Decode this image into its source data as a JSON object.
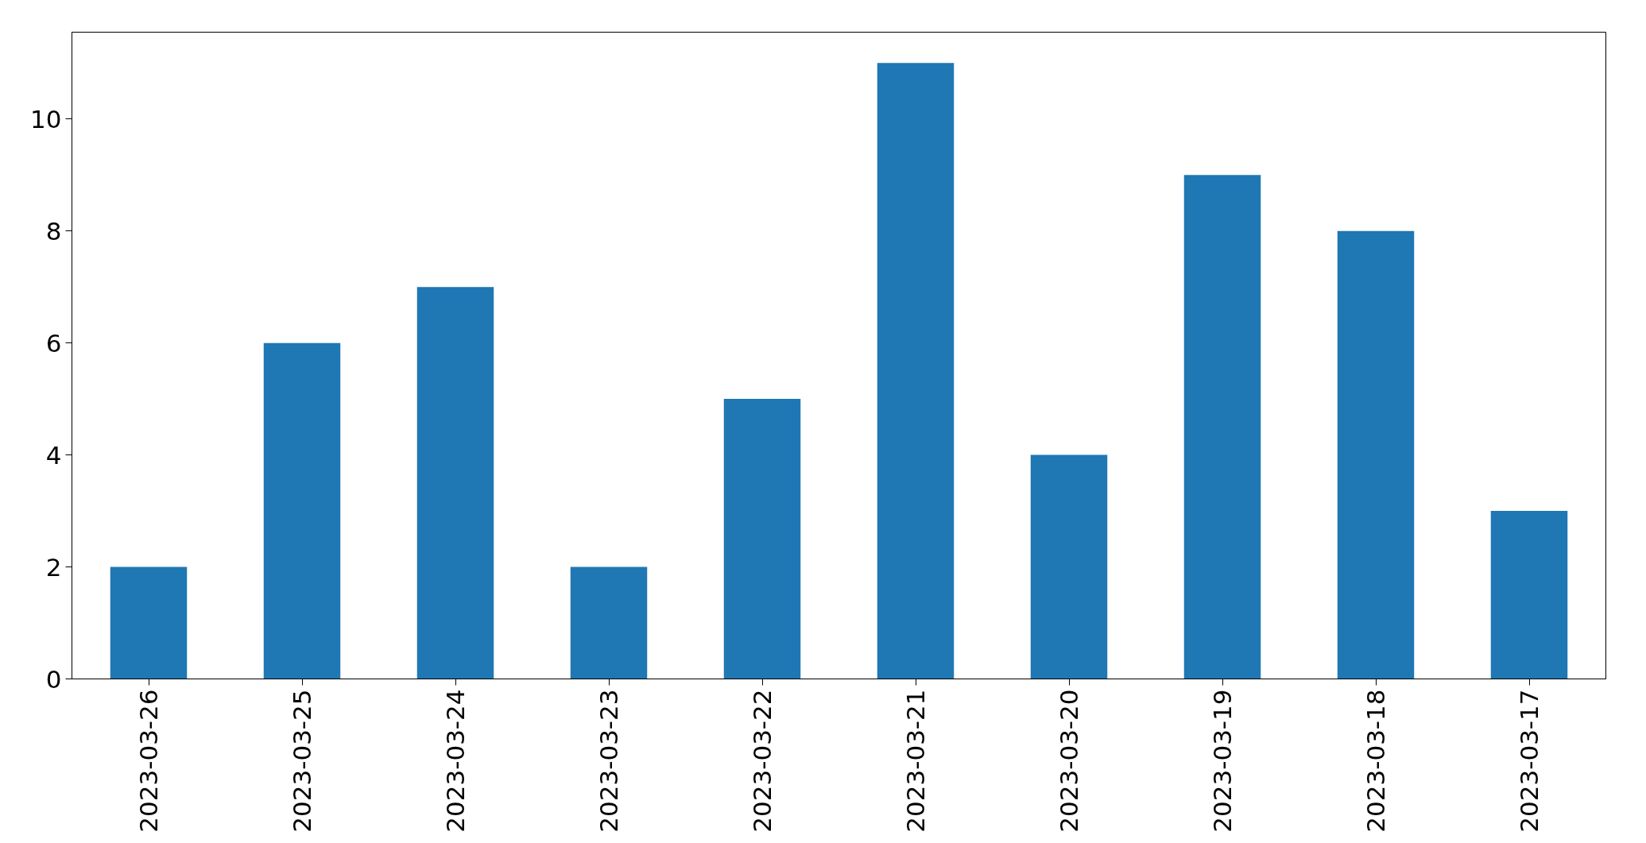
{
  "chart_data": {
    "type": "bar",
    "categories": [
      "2023-03-26",
      "2023-03-25",
      "2023-03-24",
      "2023-03-23",
      "2023-03-22",
      "2023-03-21",
      "2023-03-20",
      "2023-03-19",
      "2023-03-18",
      "2023-03-17"
    ],
    "values": [
      2,
      6,
      7,
      2,
      5,
      11,
      4,
      9,
      8,
      3
    ],
    "color": "#1f77b4",
    "ylim": [
      0,
      11.55
    ],
    "yticks": [
      0,
      2,
      4,
      6,
      8,
      10
    ],
    "grid": false
  }
}
